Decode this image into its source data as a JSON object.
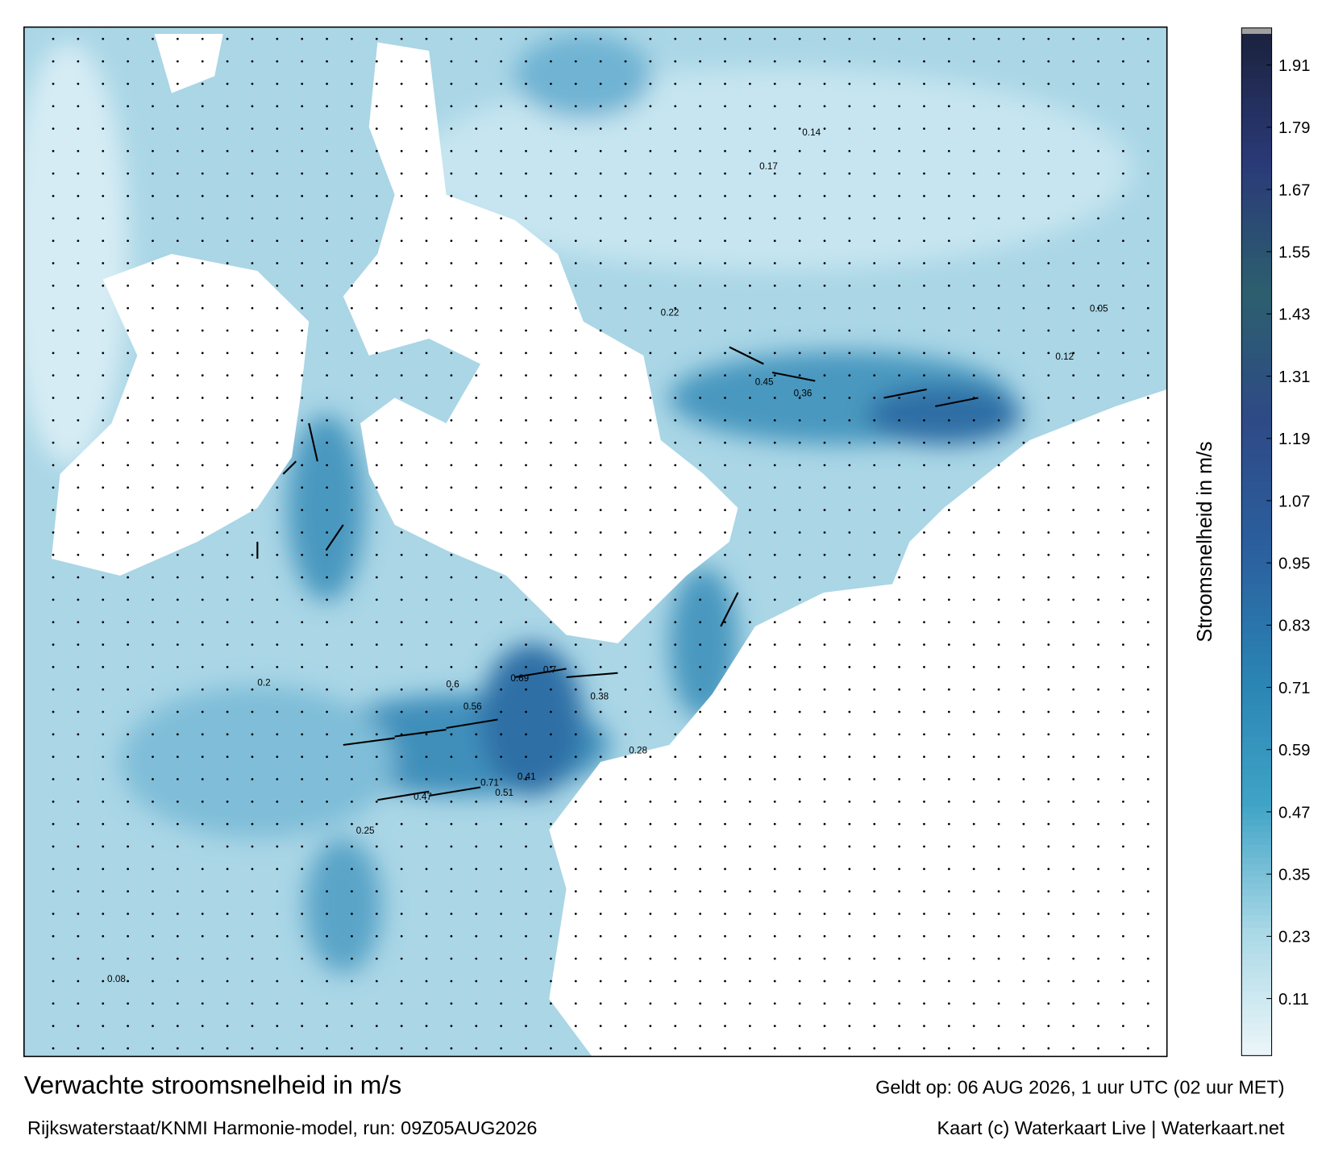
{
  "map": {
    "title": "Verwachte stroomsnelheid in m/s",
    "subtitle": "Rijkswaterstaat/KNMI Harmonie-model, run: 09Z05AUG2026",
    "valid_time": "Geldt op: 06 AUG 2026, 1 uur UTC (02 uur MET)",
    "credit": "Kaart (c) Waterkaart Live | Waterkaart.net",
    "colorbar": {
      "label": "Stroomsnelheid in m/s",
      "range": [
        0,
        1.97
      ],
      "ticks": [
        0.11,
        0.23,
        0.35,
        0.47,
        0.59,
        0.71,
        0.83,
        0.95,
        1.07,
        1.19,
        1.31,
        1.43,
        1.55,
        1.67,
        1.79,
        1.91
      ],
      "colors": [
        "#eef7fa",
        "#a9d8e6",
        "#3fa3c6",
        "#2a83b3",
        "#2b5f9e",
        "#2e4a86",
        "#2c5f6e",
        "#2a3a78",
        "#1c2340"
      ]
    },
    "map_labels": [
      0.71,
      0.51,
      0.69,
      0.7,
      0.6,
      0.56,
      0.45,
      0.36,
      0.25,
      0.2,
      0.17,
      0.14,
      0.41,
      0.47,
      0.38,
      0.28,
      0.12,
      0.08,
      0.05,
      0.22
    ]
  }
}
